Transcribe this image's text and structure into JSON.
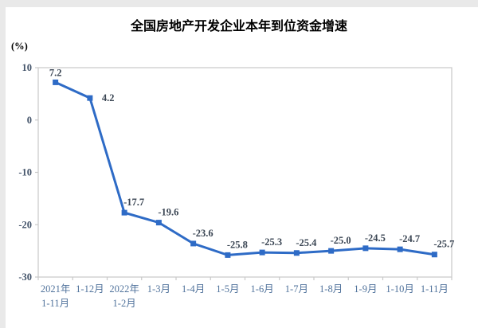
{
  "page": {
    "background": "#ffffff",
    "edge_color": "#e9e9e9"
  },
  "chart_data": {
    "type": "line",
    "title": "全国房地产开发企业本年到位资金增速",
    "ylabel": "(%)",
    "xlabel": "",
    "categories": [
      "2021年\n1-11月",
      "1-12月",
      "2022年\n1-2月",
      "1-3月",
      "1-4月",
      "1-5月",
      "1-6月",
      "1-7月",
      "1-8月",
      "1-9月",
      "1-10月",
      "1-11月"
    ],
    "values": [
      7.2,
      4.2,
      -17.7,
      -19.6,
      -23.6,
      -25.8,
      -25.3,
      -25.4,
      -25.0,
      -24.5,
      -24.7,
      -25.7
    ],
    "point_labels": [
      "7.2",
      "4.2",
      "-17.7",
      "-19.6",
      "-23.6",
      "-25.8",
      "-25.3",
      "-25.4",
      "-25.0",
      "-24.5",
      "-24.7",
      "-25.7"
    ],
    "ylim": [
      -30,
      10
    ],
    "yticks": [
      10,
      0,
      -10,
      -20,
      -30
    ],
    "grid": false,
    "legend": "none",
    "marker": "square",
    "colors": {
      "line": "#2E6BC6",
      "marker": "#2E6BC6",
      "data_label": "#3A4553",
      "ytick_label": "#44546A",
      "xtick_label": "#51739C",
      "border": "#C9C9C9",
      "title": "#333333"
    }
  }
}
